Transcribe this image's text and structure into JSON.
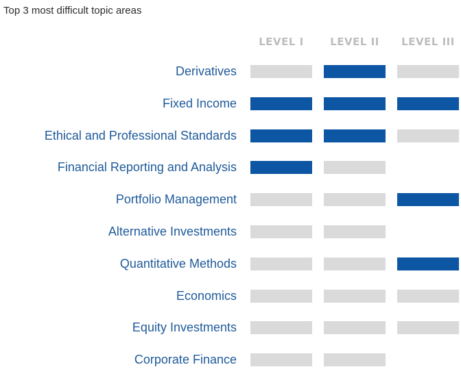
{
  "chart_data": {
    "type": "table",
    "title": "Top 3 most difficult topic areas",
    "columns": [
      "LEVEL I",
      "LEVEL II",
      "LEVEL III"
    ],
    "rows": [
      {
        "label": "Derivatives",
        "cells": [
          0,
          1,
          0
        ]
      },
      {
        "label": "Fixed Income",
        "cells": [
          1,
          1,
          1
        ]
      },
      {
        "label": "Ethical and Professional Standards",
        "cells": [
          1,
          1,
          0
        ]
      },
      {
        "label": "Financial Reporting and Analysis",
        "cells": [
          1,
          0,
          null
        ]
      },
      {
        "label": "Portfolio Management",
        "cells": [
          0,
          0,
          1
        ]
      },
      {
        "label": "Alternative Investments",
        "cells": [
          0,
          0,
          null
        ]
      },
      {
        "label": "Quantitative Methods",
        "cells": [
          0,
          0,
          1
        ]
      },
      {
        "label": "Economics",
        "cells": [
          0,
          0,
          0
        ]
      },
      {
        "label": "Equity Investments",
        "cells": [
          0,
          0,
          0
        ]
      },
      {
        "label": "Corporate Finance",
        "cells": [
          0,
          0,
          null
        ]
      }
    ],
    "colors": {
      "highlight": "#0d56a3",
      "inactive": "#dadada",
      "label": "#1f5a9a",
      "header": "#bdbdbd"
    }
  }
}
